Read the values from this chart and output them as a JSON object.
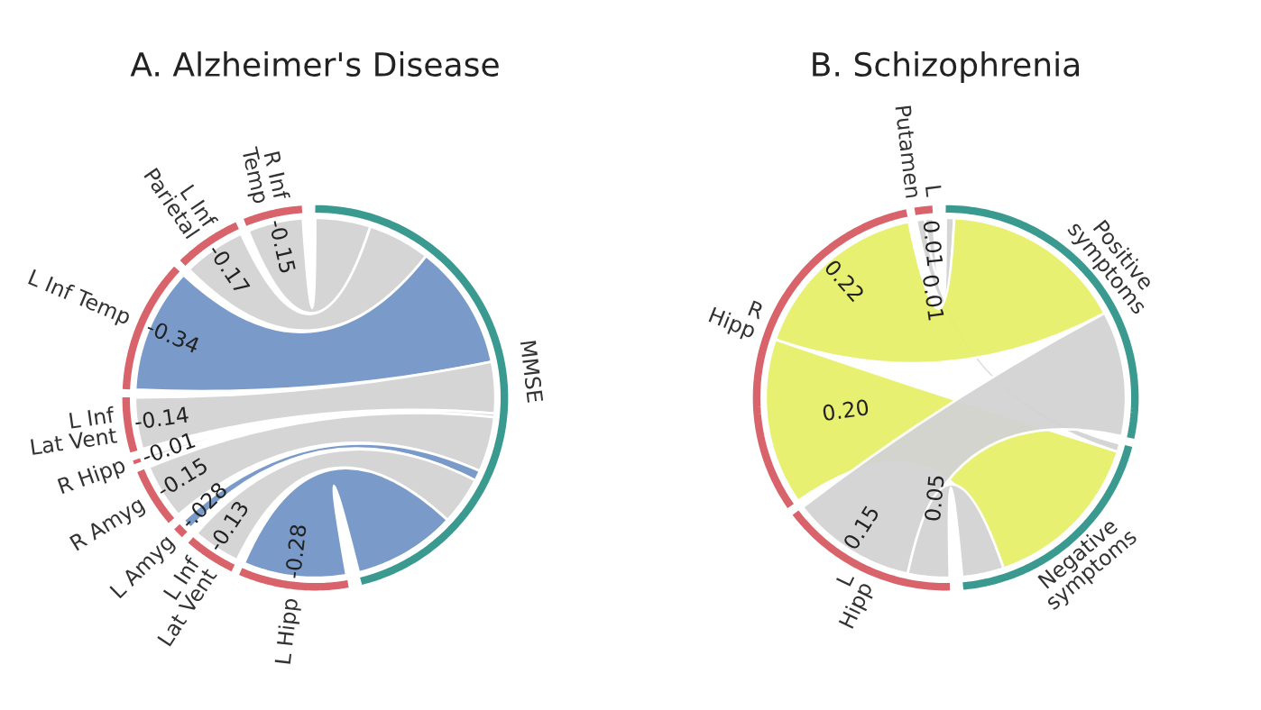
{
  "chart_data": [
    {
      "type": "other",
      "title": "A. Alzheimer's Disease",
      "color": "#d9636b",
      "categories": [
        "R Inf\nTemp",
        "L Inf\nParietal",
        "L Inf Temp",
        "L Inf\nLat Vent",
        "R Hipp",
        "R Amyg",
        "L Amyg",
        "L Inf\nLat Vent",
        "L Hipp"
      ],
      "series": [
        {
          "name": "MMSE",
          "color": "#3a9a8f",
          "values": [
            -0.15,
            -0.17,
            -0.34,
            -0.14,
            -0.01,
            -0.15,
            -0.028,
            -0.13,
            -0.28
          ],
          "value_labels": [
            "-0.15",
            "-0.17",
            "-0.34",
            "-0.14",
            "-0.01",
            "-0.15",
            "-.028",
            "-0.13",
            "-0.28"
          ],
          "colors": [
            "#d3d3d3",
            "#d3d3d3",
            "#7396c8",
            "#d3d3d3",
            "#d3d3d3",
            "#d3d3d3",
            "#7396c8",
            "#d3d3d3",
            "#7396c8"
          ]
        }
      ]
    },
    {
      "type": "other",
      "title": "B. Schizophrenia",
      "color": "#d9636b",
      "categories": [
        "L\nPutamen",
        "R\nHipp",
        "L\nHipp"
      ],
      "series": [
        {
          "name": "Positive\nsymptoms",
          "color": "#3a9a8f",
          "values": [
            0.01,
            0.22,
            0.15
          ],
          "value_labels": [
            "0.01",
            "0.22",
            "0.15"
          ],
          "colors": [
            "#d3d3d3",
            "#e6f06a",
            "#d3d3d3"
          ]
        },
        {
          "name": "Negative\nsymptoms",
          "color": "#3a9a8f",
          "values": [
            0.01,
            0.2,
            0.05
          ],
          "value_labels": [
            "0.01",
            "0.20",
            "0.05"
          ],
          "colors": [
            "#d3d3d3",
            "#e6f06a",
            "#d3d3d3"
          ]
        }
      ]
    }
  ]
}
